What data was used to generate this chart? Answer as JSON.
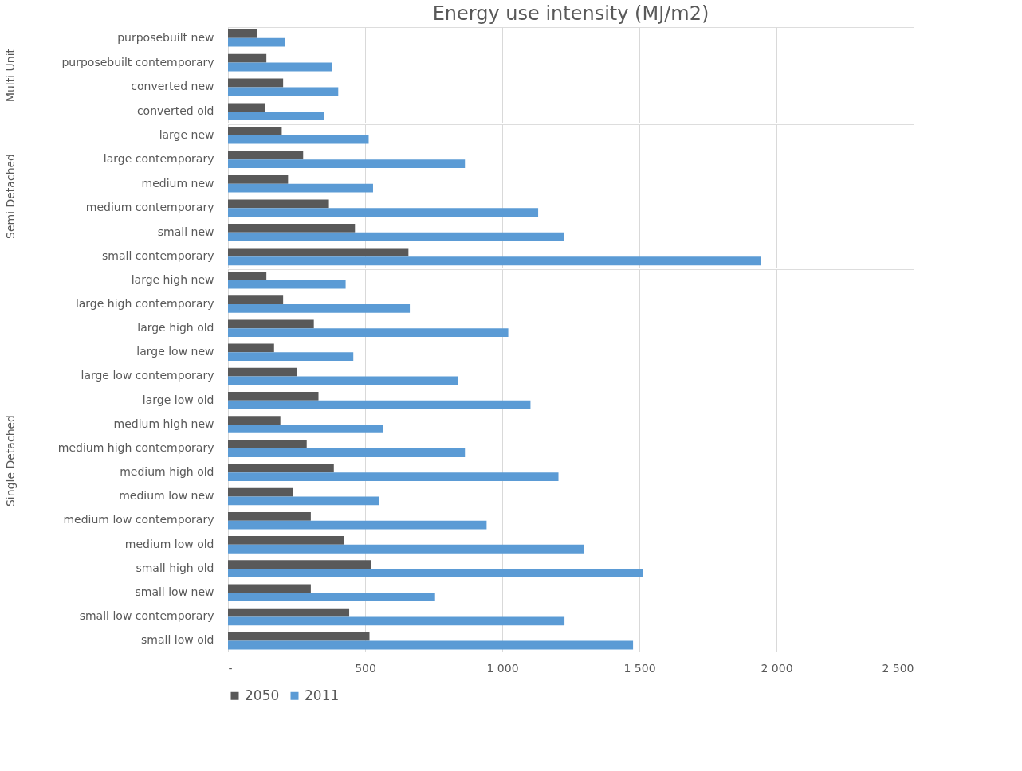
{
  "chart_data": [
    {
      "type": "bar",
      "orientation": "horizontal",
      "title": "Energy use intensity (MJ/m2)",
      "ylabel": "Multi Unit",
      "categories": [
        "purposebuilt new",
        "purposebuilt contemporary",
        "converted new",
        "converted old"
      ],
      "series": [
        {
          "name": "2050",
          "color": "#595959",
          "values": [
            107,
            140,
            201,
            135
          ]
        },
        {
          "name": "2011",
          "color": "#5b9bd5",
          "values": [
            208,
            379,
            402,
            351
          ]
        }
      ],
      "xlim": [
        0,
        2500
      ],
      "grid": "x",
      "tick_labels": "y",
      "legend": "bottom"
    },
    {
      "type": "bar",
      "orientation": "horizontal",
      "ylabel": "Semi Detached",
      "categories": [
        "large new",
        "large contemporary",
        "medium new",
        "medium contemporary",
        "small  new",
        "small  contemporary"
      ],
      "series": [
        {
          "name": "2050",
          "color": "#595959",
          "values": [
            196,
            274,
            219,
            368,
            463,
            658
          ]
        },
        {
          "name": "2011",
          "color": "#5b9bd5",
          "values": [
            513,
            864,
            529,
            1131,
            1225,
            1944
          ]
        }
      ],
      "xlim": [
        0,
        2500
      ],
      "grid": "x",
      "tick_labels": "y",
      "legend": "bottom"
    },
    {
      "type": "bar",
      "orientation": "horizontal",
      "ylabel": "Single Detached",
      "categories": [
        "large high new",
        "large high contemporary",
        "large high old",
        "large low new",
        "large low contemporary",
        "large low old",
        "medium high new",
        "medium high contemporary",
        "medium high old",
        "medium low new",
        "medium low contemporary",
        "medium low old",
        "small high old",
        "small low new",
        "small low contemporary",
        "small low old"
      ],
      "series": [
        {
          "name": "2050",
          "color": "#595959",
          "values": [
            140,
            201,
            313,
            168,
            252,
            330,
            191,
            287,
            386,
            236,
            302,
            424,
            521,
            302,
            442,
            516
          ]
        },
        {
          "name": "2011",
          "color": "#5b9bd5",
          "values": [
            429,
            663,
            1022,
            457,
            839,
            1103,
            564,
            864,
            1205,
            551,
            943,
            1299,
            1512,
            755,
            1227,
            1477
          ]
        }
      ],
      "xlim": [
        0,
        2500
      ],
      "xticks": [
        {
          "value": 0,
          "label": "-"
        },
        500,
        {
          "value": 1000,
          "label": "1 000"
        },
        {
          "value": 1500,
          "label": "1 500"
        },
        {
          "value": 2000,
          "label": "2 000"
        },
        {
          "value": 2500,
          "label": "2 500"
        }
      ],
      "grid": "x",
      "legend": "bottom"
    }
  ]
}
